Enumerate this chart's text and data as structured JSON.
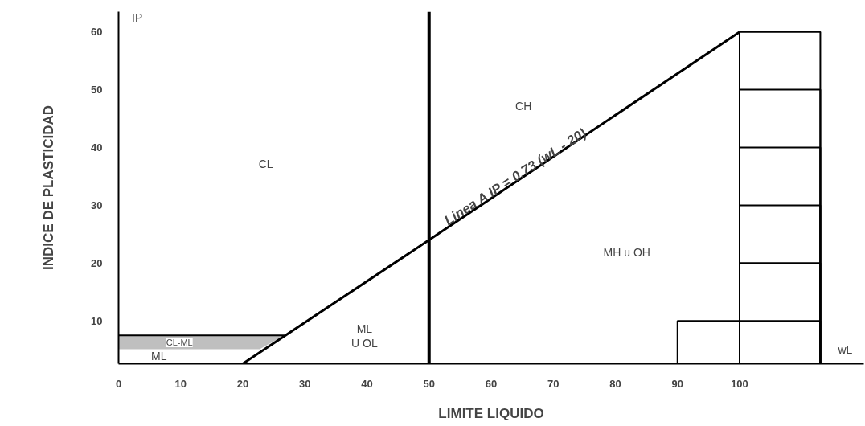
{
  "chart_data": {
    "type": "line",
    "xlabel": "LIMITE LIQUIDO",
    "ylabel": "INDICE DE PLASTICIDAD",
    "xlim": [
      0,
      120
    ],
    "ylim": [
      2.6,
      63.5
    ],
    "xticks": [
      0,
      10,
      20,
      30,
      40,
      50,
      60,
      70,
      80,
      90,
      100
    ],
    "yticks": [
      10,
      20,
      30,
      40,
      50,
      60
    ],
    "grid": false,
    "series": [
      {
        "color": "#000000",
        "x": [
          20,
          50,
          100
        ],
        "values": [
          2.6,
          24,
          60
        ]
      },
      {
        "color": "#000000",
        "x": [
          0,
          22.7,
          26.7
        ],
        "values": [
          7.5,
          7.5,
          7.5
        ],
        "lower": [
          5.1,
          5.1,
          7.5
        ],
        "upper": [
          7.5,
          7.5,
          7.5
        ]
      },
      {
        "type": "histogram",
        "color": "#000000",
        "bins": [
          90,
          100,
          113
        ],
        "values": [
          10,
          10
        ]
      },
      {
        "type": "histogram",
        "color": "#000000",
        "bins": [
          100,
          113
        ],
        "values": [
          20
        ]
      },
      {
        "type": "histogram",
        "color": "#000000",
        "bins": [
          100,
          113
        ],
        "values": [
          30
        ]
      },
      {
        "type": "histogram",
        "color": "#000000",
        "bins": [
          100,
          113
        ],
        "values": [
          40
        ]
      },
      {
        "type": "histogram",
        "color": "#000000",
        "bins": [
          100,
          113
        ],
        "values": [
          50
        ]
      },
      {
        "type": "histogram",
        "color": "#000000",
        "bins": [
          100,
          113
        ],
        "values": [
          60
        ]
      }
    ],
    "ref_lines": [
      {
        "axis": "x",
        "value": 50,
        "color": "#000000"
      }
    ],
    "annotations": [
      "IP",
      "wL",
      "CL",
      "CH",
      "MH  u OH",
      "ML\nU OL",
      "ML",
      "CL-ML",
      {
        "text": "Linea A IP = 0.73 (wL - 20)",
        "x": 64,
        "y": 35
      }
    ]
  }
}
